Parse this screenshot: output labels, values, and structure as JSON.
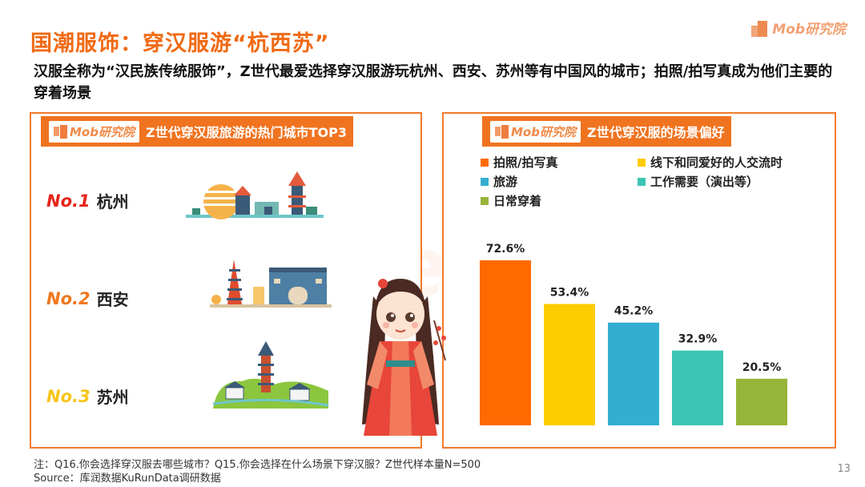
{
  "title": "国潮服饰：穿汉服游“杭西苏”",
  "brand": "Mob研究院",
  "subtitle": "汉服全称为“汉民族传统服饰”，Z世代最爱选择穿汉服游玩杭州、西安、苏州等有中国风的城市；拍照/拍写真成为他们主要的穿着场景",
  "watermark": "MobTech 袤博",
  "left_panel": {
    "title": "Z世代穿汉服旅游的热门城市TOP3",
    "ranks": [
      {
        "no": "No.1",
        "city": "杭州",
        "color": "#e8241c"
      },
      {
        "no": "No.2",
        "city": "西安",
        "color": "#f0781e"
      },
      {
        "no": "No.3",
        "city": "苏州",
        "color": "#f5c518"
      }
    ]
  },
  "right_panel": {
    "title": "Z世代穿汉服的场景偏好"
  },
  "chart_data": {
    "type": "bar",
    "title": "Z世代穿汉服的场景偏好",
    "categories": [
      "拍照/拍写真",
      "线下和同爱好的人交流时",
      "旅游",
      "工作需要（演出等）",
      "日常穿着"
    ],
    "values": [
      72.6,
      53.4,
      45.2,
      32.9,
      20.5
    ],
    "labels": [
      "72.6%",
      "53.4%",
      "45.2%",
      "32.9%",
      "20.5%"
    ],
    "colors": [
      "#ff6a00",
      "#ffcc00",
      "#33aed0",
      "#3cc4b4",
      "#97b43a"
    ],
    "unit": "%",
    "ylim": [
      0,
      80
    ],
    "grid": false,
    "legend": "top"
  },
  "footer": {
    "note": "注：Q16.你会选择穿汉服去哪些城市？Q15.你会选择在什么场景下穿汉服？Z世代样本量N=500",
    "source": "Source：库润数据KuRunData调研数据"
  },
  "page_number": "13"
}
